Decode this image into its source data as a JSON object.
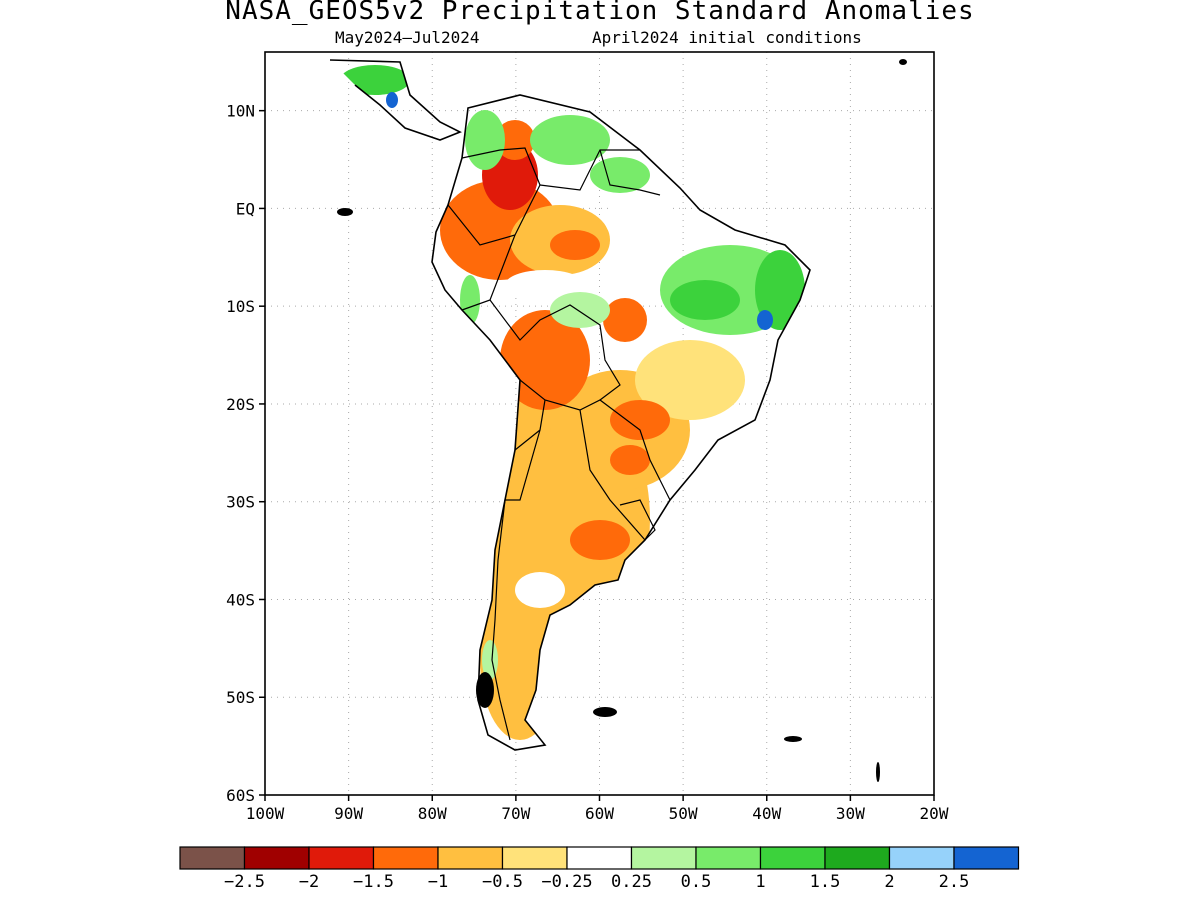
{
  "title": "NASA_GEOS5v2 Precipitation Standard Anomalies",
  "subtitle_period": "May2024–Jul2024",
  "subtitle_init": "April2024 initial conditions",
  "map": {
    "lon_range": [
      -100,
      -20
    ],
    "lat_range": [
      -60,
      16
    ],
    "lat_ticks": [
      {
        "value": 10,
        "label": "10N"
      },
      {
        "value": 0,
        "label": "EQ"
      },
      {
        "value": -10,
        "label": "10S"
      },
      {
        "value": -20,
        "label": "20S"
      },
      {
        "value": -30,
        "label": "30S"
      },
      {
        "value": -40,
        "label": "40S"
      },
      {
        "value": -50,
        "label": "50S"
      },
      {
        "value": -60,
        "label": "60S"
      }
    ],
    "lon_ticks": [
      {
        "value": -100,
        "label": "100W"
      },
      {
        "value": -90,
        "label": "90W"
      },
      {
        "value": -80,
        "label": "80W"
      },
      {
        "value": -70,
        "label": "70W"
      },
      {
        "value": -60,
        "label": "60W"
      },
      {
        "value": -50,
        "label": "50W"
      },
      {
        "value": -40,
        "label": "40W"
      },
      {
        "value": -30,
        "label": "30W"
      },
      {
        "value": -20,
        "label": "20W"
      }
    ],
    "grid": true
  },
  "colorbar": {
    "colors": [
      "#7b5249",
      "#a00000",
      "#e01a0a",
      "#ff6a0a",
      "#ffbf40",
      "#ffe27a",
      "#ffffff",
      "#b4f5a0",
      "#78eb6a",
      "#3cd23c",
      "#1eaa1e",
      "#96d2fa",
      "#1464d2"
    ],
    "labels": [
      "−2.5",
      "−2",
      "−1.5",
      "−1",
      "−0.5",
      "−0.25",
      "0.25",
      "0.5",
      "1",
      "1.5",
      "2",
      "2.5"
    ]
  },
  "anomaly_colors": {
    "strong_dry": "#e01a0a",
    "moderate_dry": "#ff6a0a",
    "dry": "#ffbf40",
    "slightly_dry": "#ffe27a",
    "slightly_wet": "#b4f5a0",
    "wet": "#78eb6a",
    "very_wet": "#3cd23c",
    "wettest": "#1eaa1e",
    "extreme_wet": "#1464d2"
  }
}
